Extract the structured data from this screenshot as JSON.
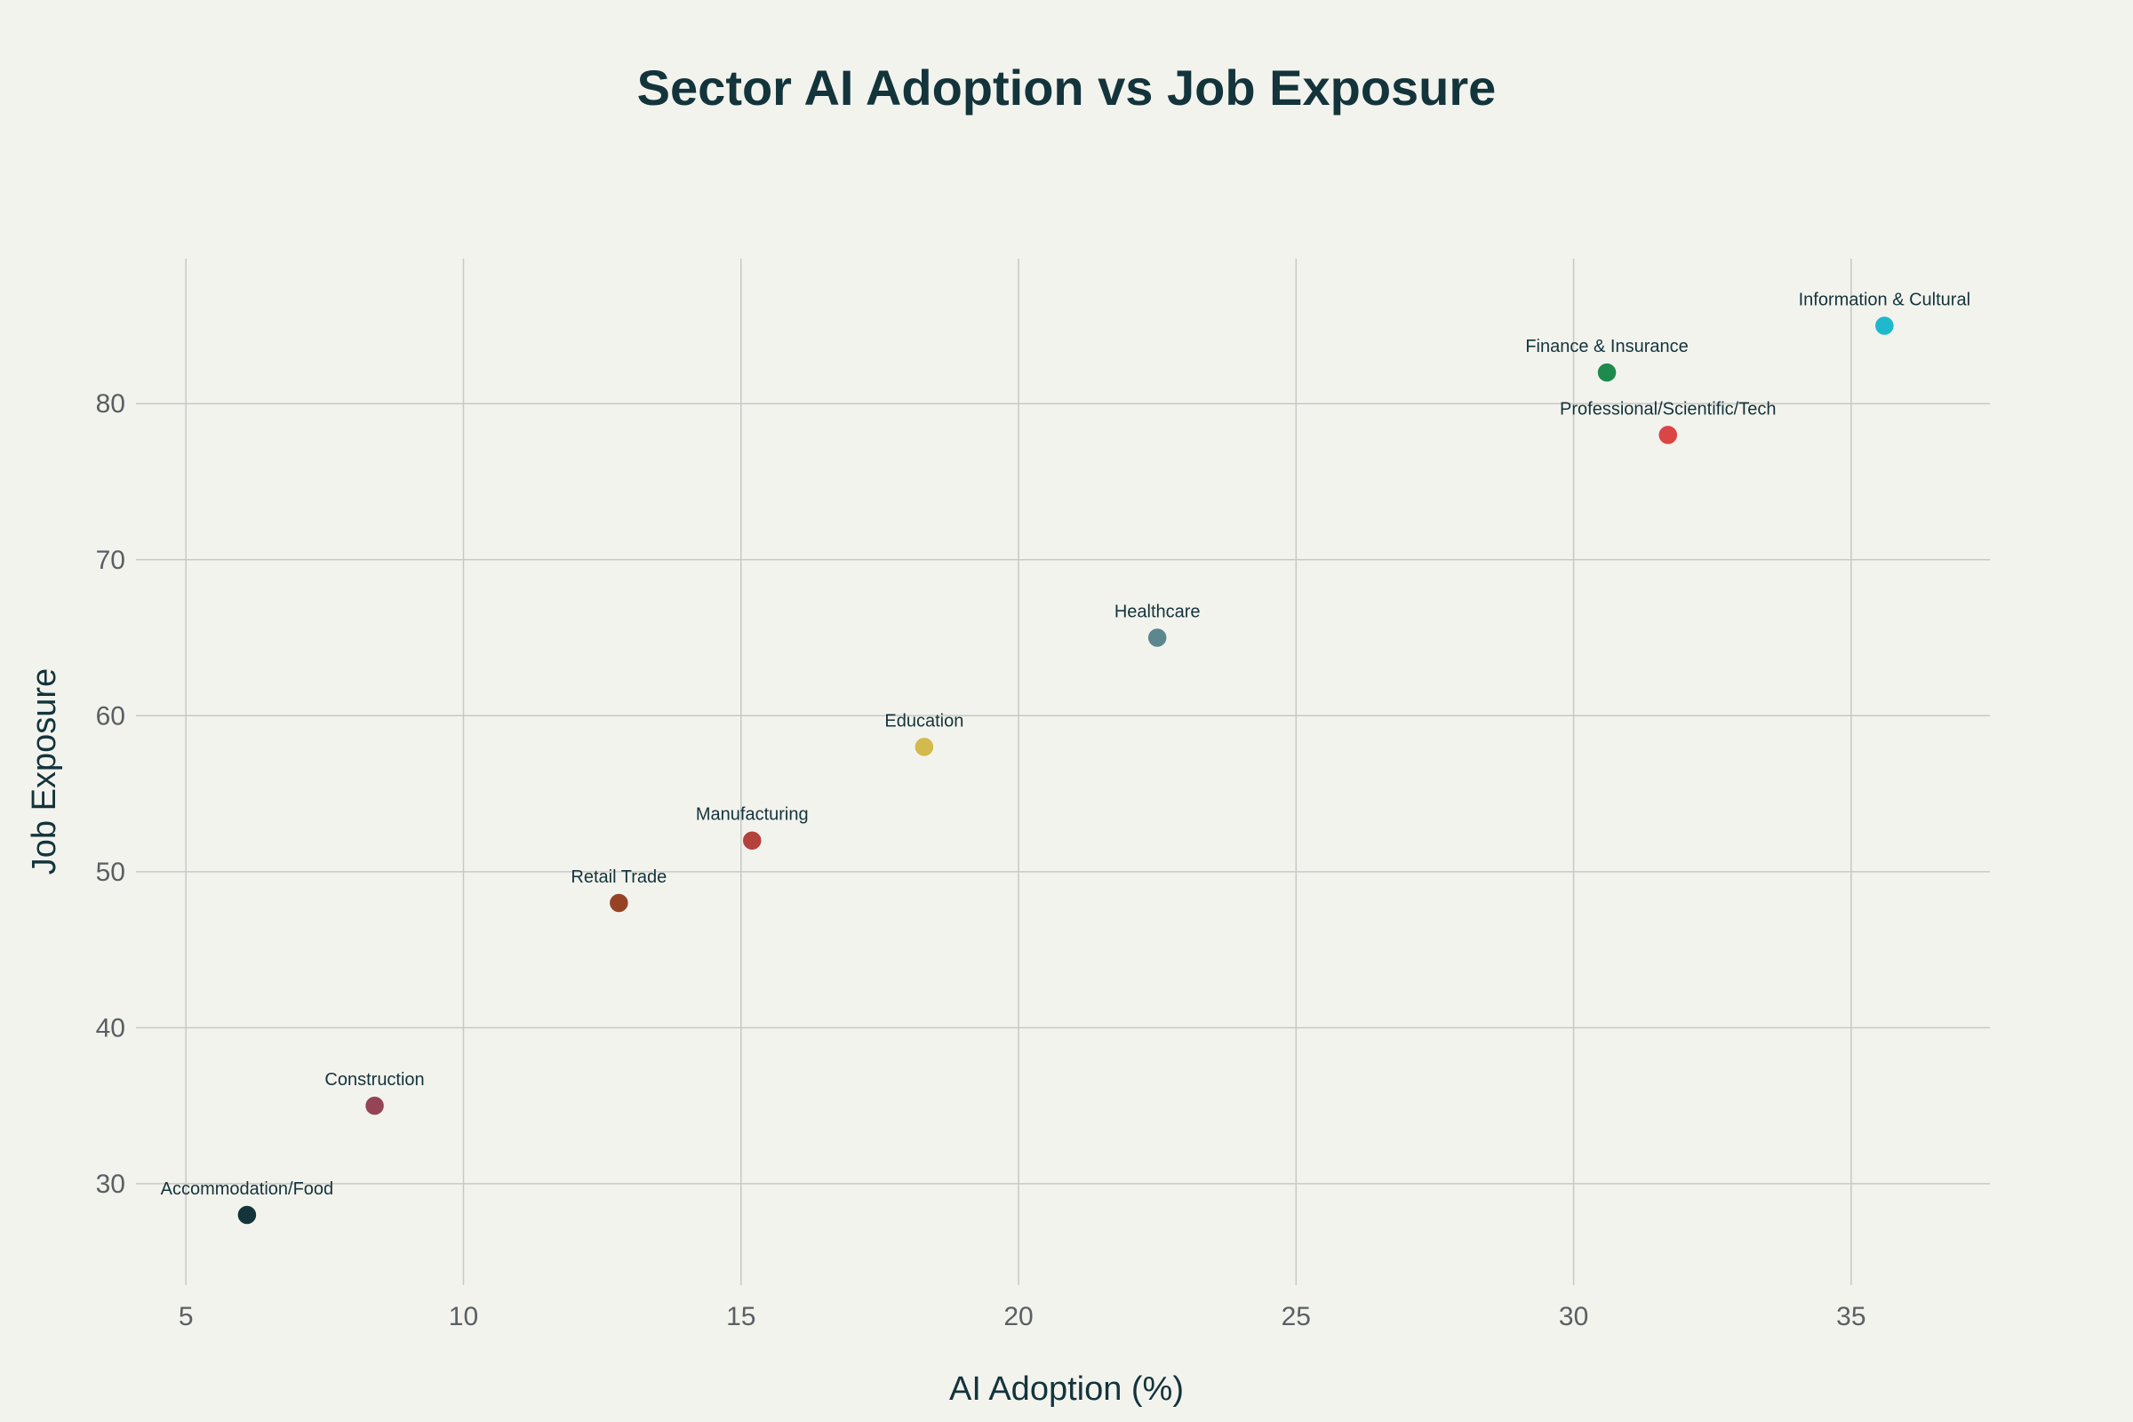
{
  "chart_data": {
    "type": "scatter",
    "title": "Sector AI Adoption vs Job Exposure",
    "xlabel": "AI Adoption (%)",
    "ylabel": "Job Exposure",
    "xlim": [
      4.1,
      37.5
    ],
    "ylim": [
      23.5,
      89.3
    ],
    "xticks": [
      5,
      10,
      15,
      20,
      25,
      30,
      35
    ],
    "yticks": [
      30,
      40,
      50,
      60,
      70,
      80
    ],
    "grid": true,
    "points": [
      {
        "label": "Accommodation/Food",
        "x": 6.1,
        "y": 28,
        "color": "#13343b"
      },
      {
        "label": "Construction",
        "x": 8.4,
        "y": 35,
        "color": "#944454"
      },
      {
        "label": "Retail Trade",
        "x": 12.8,
        "y": 48,
        "color": "#964325"
      },
      {
        "label": "Manufacturing",
        "x": 15.2,
        "y": 52,
        "color": "#b4413c"
      },
      {
        "label": "Education",
        "x": 18.3,
        "y": 58,
        "color": "#d2ba4c"
      },
      {
        "label": "Healthcare",
        "x": 22.5,
        "y": 65,
        "color": "#5d878f"
      },
      {
        "label": "Finance & Insurance",
        "x": 30.6,
        "y": 82,
        "color": "#1e8a4c"
      },
      {
        "label": "Professional/Scientific/Tech",
        "x": 31.7,
        "y": 78,
        "color": "#db4545"
      },
      {
        "label": "Information & Cultural",
        "x": 35.6,
        "y": 85,
        "color": "#1fb8cd"
      }
    ]
  }
}
